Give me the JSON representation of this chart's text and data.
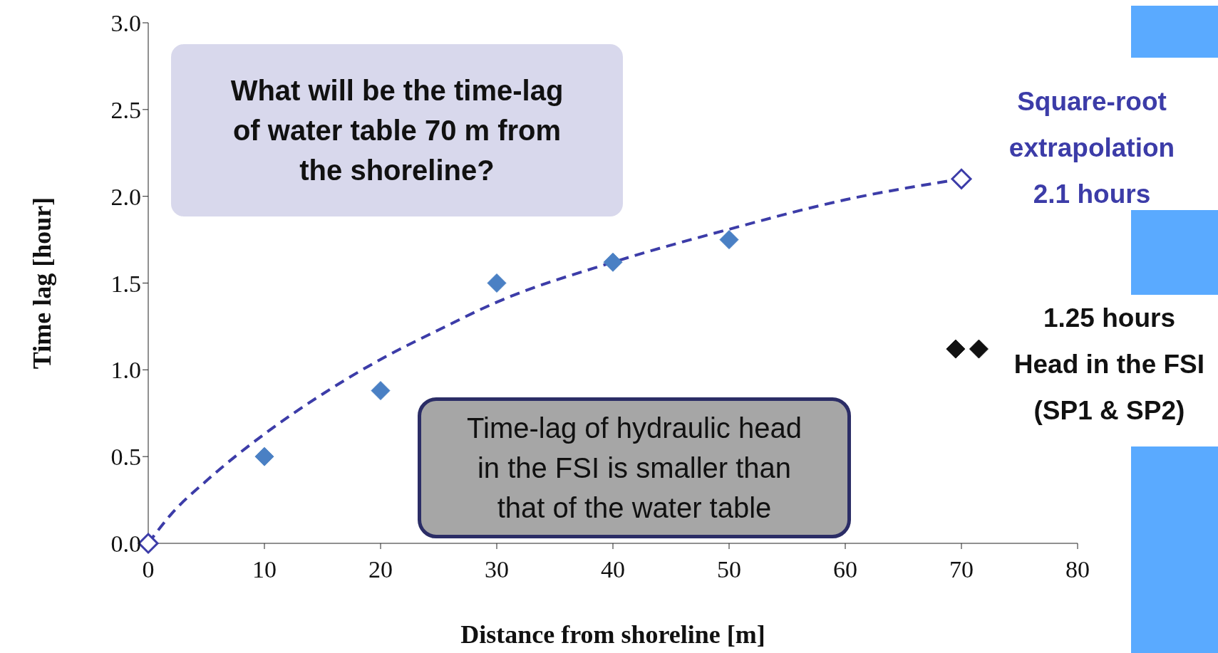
{
  "chart_data": {
    "type": "scatter",
    "xlabel": "Distance from shoreline [m]",
    "ylabel": "Time lag [hour]",
    "xlim": [
      0,
      80
    ],
    "xticks": [
      0,
      10,
      20,
      30,
      40,
      50,
      60,
      70,
      80
    ],
    "ylim": [
      0,
      3
    ],
    "yticks": [
      {
        "value": 0,
        "label": "0.0"
      },
      {
        "value": 0.5,
        "label": "0.5"
      },
      {
        "value": 1,
        "label": "1.0"
      },
      {
        "value": 1.5,
        "label": "1.5"
      },
      {
        "value": 2,
        "label": "2.0"
      },
      {
        "value": 2.5,
        "label": "2.5"
      },
      {
        "value": 3,
        "label": "3.0"
      }
    ],
    "marker": "diamond",
    "series": [
      {
        "type": "line",
        "color": "#3c3ca8",
        "line_style": "dashed",
        "marker": "none",
        "x": [
          0,
          2,
          5,
          10,
          15,
          20,
          25,
          30,
          40,
          50,
          60,
          70
        ],
        "values": [
          0,
          0.17,
          0.36,
          0.63,
          0.86,
          1.06,
          1.23,
          1.39,
          1.62,
          1.81,
          1.98,
          2.1
        ]
      },
      {
        "color": "#4a80c4",
        "x": [
          10,
          20,
          30,
          40,
          50
        ],
        "values": [
          0.5,
          0.88,
          1.5,
          1.62,
          1.75
        ]
      },
      {
        "color": "#3c3ca8",
        "x": [
          0,
          70
        ],
        "values": [
          0,
          2.1
        ]
      },
      {
        "color": "#111111",
        "x": [
          69.5,
          71.5
        ],
        "values": [
          1.12,
          1.12
        ]
      }
    ],
    "annotations": [
      "What will be the time-lag of water table 70 m from the shoreline?",
      "Time-lag of hydraulic head in the FSI is smaller than that of the water table",
      {
        "text": "Square-root extrapolation\n2.1 hours",
        "x": 70,
        "y": 2.1
      },
      {
        "text": "1.25 hours\nHead in the FSI\n(SP1 & SP2)",
        "x": 71.5,
        "y": 1.12
      }
    ]
  }
}
